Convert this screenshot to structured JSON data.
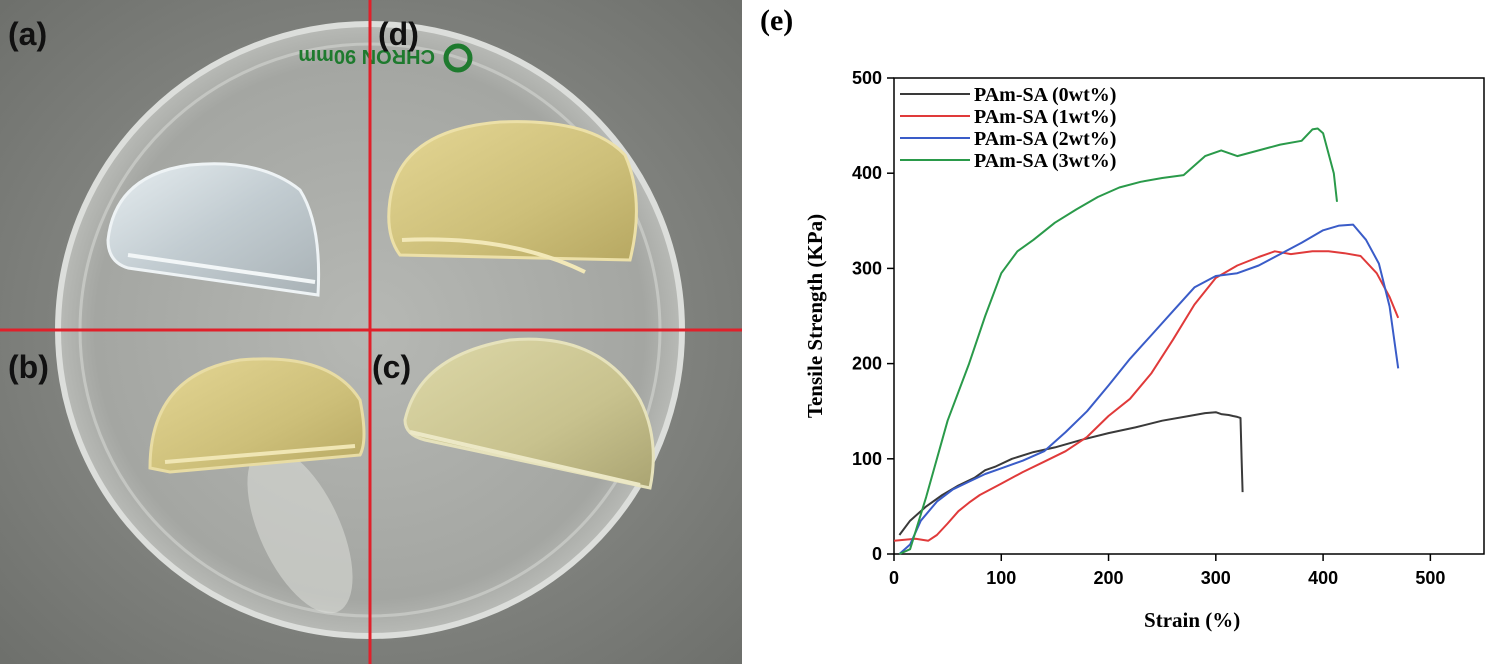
{
  "photo": {
    "panels": [
      "(a)",
      "(d)",
      "(b)",
      "(c)"
    ],
    "dish_text": "CHRON 90mm",
    "colors": {
      "background": "#8a8c88",
      "divider": "#e0202a",
      "gel_clear": "#cfd8dc",
      "gel_yellow": "#d8cc88",
      "dish_print": "#1e7a2e"
    }
  },
  "chart_data": {
    "type": "line",
    "panel_label": "(e)",
    "xlabel": "Strain (%)",
    "ylabel": "Tensile Strength (KPa)",
    "xlim": [
      0,
      550
    ],
    "ylim": [
      0,
      500
    ],
    "xticks": [
      0,
      100,
      200,
      300,
      400,
      500
    ],
    "yticks": [
      0,
      100,
      200,
      300,
      400,
      500
    ],
    "grid": false,
    "legend_position": "top-left",
    "series": [
      {
        "name": "PAm-SA (0wt%)",
        "color": "#3a3a3a",
        "points": [
          [
            5,
            20
          ],
          [
            15,
            35
          ],
          [
            30,
            50
          ],
          [
            45,
            62
          ],
          [
            60,
            72
          ],
          [
            75,
            80
          ],
          [
            85,
            88
          ],
          [
            95,
            92
          ],
          [
            110,
            100
          ],
          [
            130,
            107
          ],
          [
            150,
            112
          ],
          [
            175,
            120
          ],
          [
            200,
            127
          ],
          [
            225,
            133
          ],
          [
            250,
            140
          ],
          [
            275,
            145
          ],
          [
            290,
            148
          ],
          [
            300,
            149
          ],
          [
            305,
            147
          ],
          [
            312,
            146
          ],
          [
            316,
            145
          ],
          [
            320,
            144
          ],
          [
            323,
            143
          ],
          [
            324,
            100
          ],
          [
            325,
            65
          ]
        ]
      },
      {
        "name": "PAm-SA (1wt%)",
        "color": "#e03a3a",
        "points": [
          [
            0,
            14
          ],
          [
            10,
            15
          ],
          [
            20,
            16
          ],
          [
            32,
            14
          ],
          [
            40,
            20
          ],
          [
            50,
            32
          ],
          [
            60,
            45
          ],
          [
            70,
            54
          ],
          [
            80,
            62
          ],
          [
            100,
            74
          ],
          [
            120,
            86
          ],
          [
            140,
            97
          ],
          [
            160,
            108
          ],
          [
            180,
            123
          ],
          [
            200,
            145
          ],
          [
            220,
            163
          ],
          [
            240,
            190
          ],
          [
            260,
            225
          ],
          [
            280,
            262
          ],
          [
            300,
            290
          ],
          [
            320,
            303
          ],
          [
            340,
            312
          ],
          [
            355,
            318
          ],
          [
            370,
            315
          ],
          [
            390,
            318
          ],
          [
            405,
            318
          ],
          [
            420,
            316
          ],
          [
            435,
            313
          ],
          [
            450,
            295
          ],
          [
            462,
            270
          ],
          [
            470,
            248
          ]
        ]
      },
      {
        "name": "PAm-SA (2wt%)",
        "color": "#3a5cc8",
        "points": [
          [
            5,
            0
          ],
          [
            15,
            10
          ],
          [
            25,
            35
          ],
          [
            40,
            55
          ],
          [
            55,
            68
          ],
          [
            70,
            76
          ],
          [
            85,
            84
          ],
          [
            100,
            90
          ],
          [
            120,
            98
          ],
          [
            140,
            108
          ],
          [
            160,
            128
          ],
          [
            180,
            150
          ],
          [
            200,
            177
          ],
          [
            220,
            205
          ],
          [
            240,
            230
          ],
          [
            260,
            255
          ],
          [
            280,
            280
          ],
          [
            300,
            292
          ],
          [
            320,
            295
          ],
          [
            340,
            303
          ],
          [
            360,
            315
          ],
          [
            380,
            327
          ],
          [
            400,
            340
          ],
          [
            415,
            345
          ],
          [
            428,
            346
          ],
          [
            440,
            330
          ],
          [
            452,
            305
          ],
          [
            462,
            260
          ],
          [
            470,
            195
          ]
        ]
      },
      {
        "name": "PAm-SA (3wt%)",
        "color": "#2a9a4a",
        "points": [
          [
            5,
            0
          ],
          [
            15,
            5
          ],
          [
            30,
            60
          ],
          [
            50,
            140
          ],
          [
            70,
            200
          ],
          [
            85,
            250
          ],
          [
            100,
            295
          ],
          [
            115,
            318
          ],
          [
            130,
            330
          ],
          [
            150,
            348
          ],
          [
            170,
            362
          ],
          [
            190,
            375
          ],
          [
            210,
            385
          ],
          [
            230,
            391
          ],
          [
            250,
            395
          ],
          [
            270,
            398
          ],
          [
            290,
            418
          ],
          [
            305,
            424
          ],
          [
            320,
            418
          ],
          [
            340,
            424
          ],
          [
            360,
            430
          ],
          [
            380,
            434
          ],
          [
            390,
            446
          ],
          [
            395,
            447
          ],
          [
            400,
            442
          ],
          [
            410,
            400
          ],
          [
            413,
            370
          ]
        ]
      }
    ]
  }
}
